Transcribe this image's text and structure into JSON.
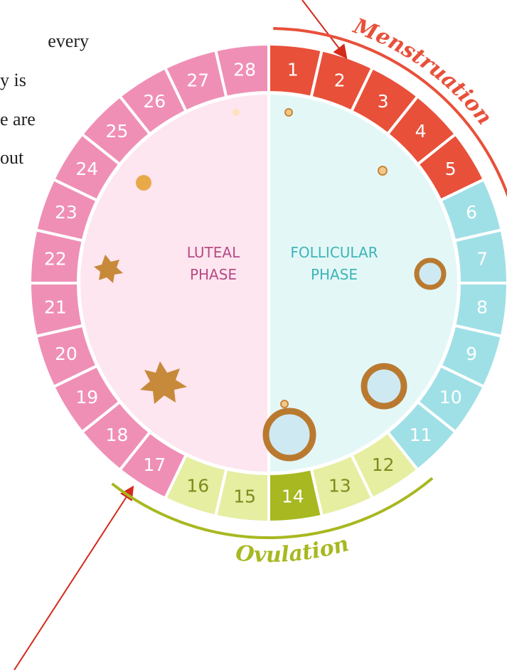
{
  "side_text": [
    "every",
    "y is",
    "e are",
    "out"
  ],
  "days": [
    "1",
    "2",
    "3",
    "4",
    "5",
    "6",
    "7",
    "8",
    "9",
    "10",
    "11",
    "12",
    "13",
    "14",
    "15",
    "16",
    "17",
    "18",
    "19",
    "20",
    "21",
    "22",
    "23",
    "24",
    "25",
    "26",
    "27",
    "28"
  ],
  "arcs": {
    "menstruation": "Menstruation",
    "ovulation": "Ovulation"
  },
  "phases": {
    "luteal": [
      "LUTEAL",
      "PHASE"
    ],
    "follicular": [
      "FOLLICULAR",
      "PHASE"
    ]
  }
}
